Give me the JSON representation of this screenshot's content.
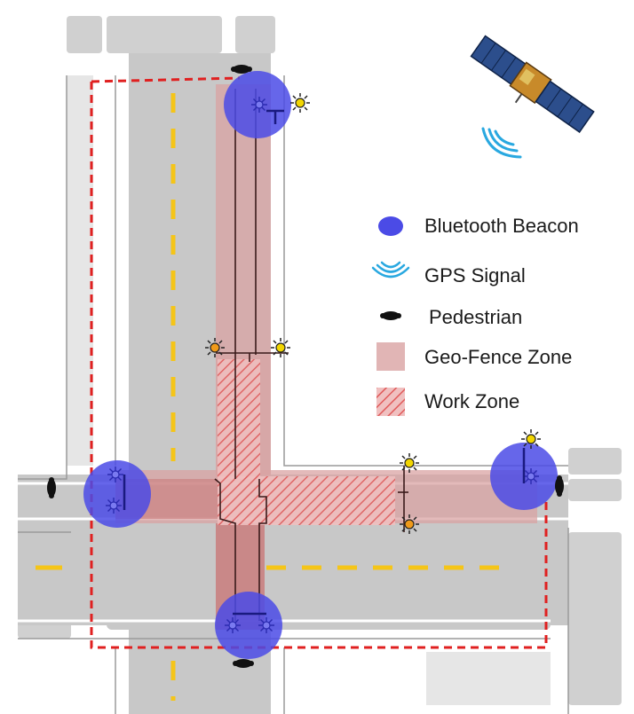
{
  "legend": {
    "items": [
      {
        "key": "beacon",
        "label": "Bluetooth Beacon"
      },
      {
        "key": "gps",
        "label": "GPS Signal"
      },
      {
        "key": "pedestrian",
        "label": "Pedestrian"
      },
      {
        "key": "geofence",
        "label": "Geo-Fence Zone"
      },
      {
        "key": "workzone",
        "label": "Work Zone"
      }
    ]
  },
  "colors": {
    "road": "#c8c8c8",
    "sidewalk": "#e2e2e2",
    "curb": "#9a9a9a",
    "lane_marking": "#f5c518",
    "geofence": "#d9a3a3",
    "workzone": "#e05a5a",
    "beacon": "#4b4be6",
    "boundary": "#e02020",
    "gps_signal": "#29a8e0",
    "signal_light": "#f2c200",
    "signal_post": "#222222"
  },
  "icons": [
    "satellite-icon",
    "gps-signal-icon",
    "bluetooth-beacon-icon",
    "pedestrian-icon",
    "traffic-signal-icon"
  ]
}
